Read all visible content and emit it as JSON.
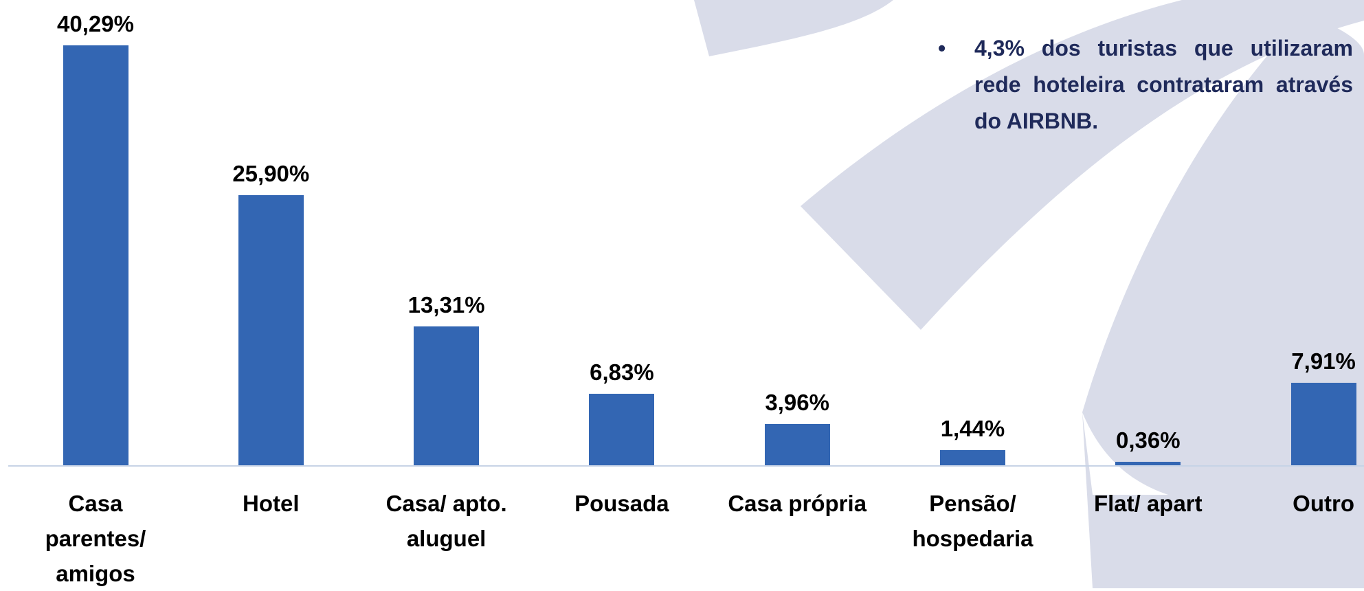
{
  "chart_data": {
    "type": "bar",
    "categories": [
      "Casa\nparentes/\namigos",
      "Hotel",
      "Casa/ apto.\naluguel",
      "Pousada",
      "Casa própria",
      "Pensão/\nhospedaria",
      "Flat/ apart",
      "Outro"
    ],
    "values": [
      40.29,
      25.9,
      13.31,
      6.83,
      3.96,
      1.44,
      0.36,
      7.91
    ],
    "value_labels": [
      "40,29%",
      "25,90%",
      "13,31%",
      "6,83%",
      "3,96%",
      "1,44%",
      "0,36%",
      "7,91%"
    ],
    "color": "#3366b3",
    "annotation": "4,3% dos turistas que utilizaram rede hoteleira contrataram através do AIRBNB."
  }
}
